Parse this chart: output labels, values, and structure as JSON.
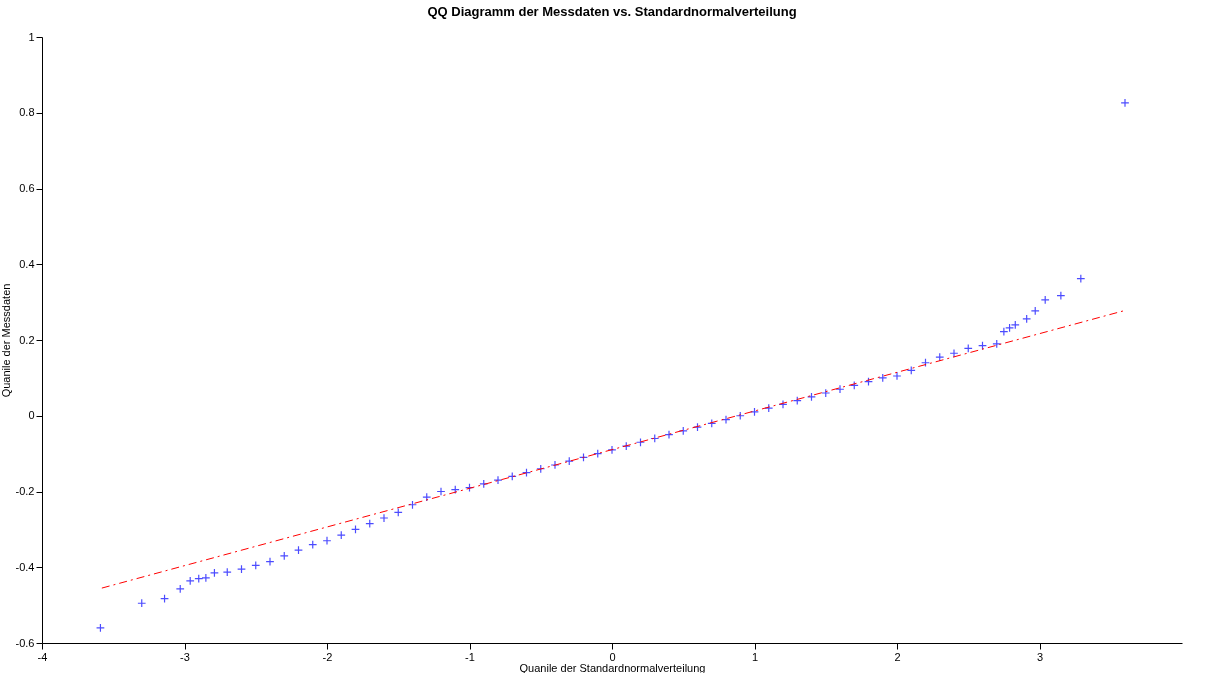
{
  "chart_data": {
    "type": "scatter",
    "title": "QQ Diagramm der Messdaten vs. Standardnormalverteilung",
    "xlabel": "Quanile der Standardnormalverteilung",
    "ylabel": "Quanile der Messdaten",
    "marker": "cross",
    "grid": false,
    "xlim": [
      -4,
      4
    ],
    "xticks": [
      -4,
      -3,
      -2,
      -1,
      0,
      1,
      2,
      3
    ],
    "ylim": [
      -0.6,
      1
    ],
    "yticks": [
      -0.6,
      -0.4,
      -0.2,
      0,
      0.2,
      0.4,
      0.6,
      0.8,
      1
    ],
    "series": [
      {
        "color": "#0000ff",
        "x": [
          -3.59,
          -3.3,
          -3.14,
          -3.03,
          -2.96,
          -2.9,
          -2.85,
          -2.79,
          -2.7,
          -2.6,
          -2.5,
          -2.4,
          -2.3,
          -2.2,
          -2.1,
          -2.0,
          -1.9,
          -1.8,
          -1.7,
          -1.6,
          -1.5,
          -1.4,
          -1.3,
          -1.2,
          -1.1,
          -1.0,
          -0.9,
          -0.8,
          -0.7,
          -0.6,
          -0.5,
          -0.4,
          -0.3,
          -0.2,
          -0.1,
          0,
          0.1,
          0.2,
          0.3,
          0.4,
          0.5,
          0.6,
          0.7,
          0.8,
          0.9,
          1.0,
          1.1,
          1.2,
          1.3,
          1.4,
          1.5,
          1.6,
          1.7,
          1.8,
          1.9,
          2.0,
          2.1,
          2.2,
          2.3,
          2.4,
          2.5,
          2.6,
          2.7,
          2.75,
          2.79,
          2.83,
          2.91,
          2.97,
          3.04,
          3.15,
          3.29,
          3.6
        ],
        "values": [
          -0.56,
          -0.495,
          -0.483,
          -0.457,
          -0.436,
          -0.43,
          -0.428,
          -0.415,
          -0.413,
          -0.405,
          -0.395,
          -0.385,
          -0.37,
          -0.355,
          -0.34,
          -0.33,
          -0.315,
          -0.3,
          -0.285,
          -0.27,
          -0.255,
          -0.235,
          -0.215,
          -0.2,
          -0.195,
          -0.19,
          -0.18,
          -0.17,
          -0.16,
          -0.15,
          -0.14,
          -0.13,
          -0.12,
          -0.11,
          -0.1,
          -0.09,
          -0.08,
          -0.07,
          -0.06,
          -0.05,
          -0.04,
          -0.03,
          -0.02,
          -0.01,
          0.0,
          0.01,
          0.02,
          0.03,
          0.04,
          0.05,
          0.06,
          0.07,
          0.08,
          0.09,
          0.1,
          0.105,
          0.12,
          0.14,
          0.155,
          0.165,
          0.178,
          0.185,
          0.19,
          0.222,
          0.232,
          0.24,
          0.256,
          0.277,
          0.306,
          0.317,
          0.362,
          0.826
        ]
      },
      {
        "type": "line",
        "marker": "none",
        "color": "#ff0000",
        "line_style": "dashed",
        "x": [
          -3.58,
          3.6
        ],
        "values": [
          -0.455,
          0.278
        ]
      }
    ]
  }
}
